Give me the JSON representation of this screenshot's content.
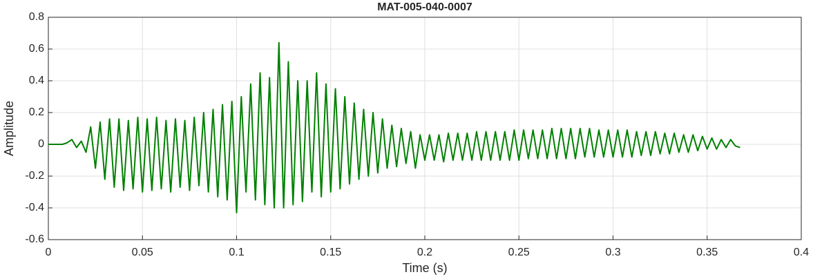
{
  "chart_data": {
    "type": "line",
    "title": "MAT-005-040-0007",
    "x_label": "Time (s)",
    "y_label": "Amplitude",
    "color": "#008000",
    "grid": true,
    "xlim": [
      0,
      0.4
    ],
    "xticks": [
      0,
      0.05,
      0.1,
      0.15,
      0.2,
      0.25,
      0.3,
      0.35,
      0.4
    ],
    "ylim": [
      -0.6,
      0.8
    ],
    "yticks": [
      -0.6,
      -0.4,
      -0.2,
      0,
      0.2,
      0.4,
      0.6,
      0.8
    ],
    "x": [
      0,
      0.0025,
      0.005,
      0.0075,
      0.01,
      0.0125,
      0.015,
      0.0175,
      0.02,
      0.0225,
      0.025,
      0.0275,
      0.03,
      0.0325,
      0.035,
      0.0375,
      0.04,
      0.0425,
      0.045,
      0.0475,
      0.05,
      0.0525,
      0.055,
      0.0575,
      0.06,
      0.0625,
      0.065,
      0.0675,
      0.07,
      0.0725,
      0.075,
      0.0775,
      0.08,
      0.0825,
      0.085,
      0.0875,
      0.09,
      0.0925,
      0.095,
      0.0975,
      0.1,
      0.1025,
      0.105,
      0.1075,
      0.11,
      0.1125,
      0.115,
      0.1175,
      0.12,
      0.1225,
      0.125,
      0.1275,
      0.13,
      0.1325,
      0.135,
      0.1375,
      0.14,
      0.1425,
      0.145,
      0.1475,
      0.15,
      0.1525,
      0.155,
      0.1575,
      0.16,
      0.1625,
      0.165,
      0.1675,
      0.17,
      0.1725,
      0.175,
      0.1775,
      0.18,
      0.1825,
      0.185,
      0.1875,
      0.19,
      0.1925,
      0.195,
      0.1975,
      0.2,
      0.2025,
      0.205,
      0.2075,
      0.21,
      0.2125,
      0.215,
      0.2175,
      0.22,
      0.2225,
      0.225,
      0.2275,
      0.23,
      0.2325,
      0.235,
      0.2375,
      0.24,
      0.2425,
      0.245,
      0.2475,
      0.25,
      0.2525,
      0.255,
      0.2575,
      0.26,
      0.2625,
      0.265,
      0.2675,
      0.27,
      0.2725,
      0.275,
      0.2775,
      0.28,
      0.2825,
      0.285,
      0.2875,
      0.29,
      0.2925,
      0.295,
      0.2975,
      0.3,
      0.3025,
      0.305,
      0.3075,
      0.31,
      0.3125,
      0.315,
      0.3175,
      0.32,
      0.3225,
      0.325,
      0.3275,
      0.33,
      0.3325,
      0.335,
      0.3375,
      0.34,
      0.3425,
      0.345,
      0.3475,
      0.35,
      0.3525,
      0.355,
      0.3575,
      0.36,
      0.3625,
      0.365,
      0.3675
    ],
    "values": [
      0,
      0,
      0,
      0,
      0.01,
      0.03,
      -0.02,
      0.02,
      -0.05,
      0.11,
      -0.15,
      0.14,
      -0.22,
      0.16,
      -0.27,
      0.16,
      -0.29,
      0.15,
      -0.28,
      0.17,
      -0.3,
      0.16,
      -0.29,
      0.17,
      -0.28,
      0.15,
      -0.3,
      0.16,
      -0.27,
      0.15,
      -0.29,
      0.17,
      -0.26,
      0.2,
      -0.3,
      0.22,
      -0.33,
      0.25,
      -0.35,
      0.27,
      -0.43,
      0.3,
      -0.3,
      0.38,
      -0.35,
      0.45,
      -0.38,
      0.42,
      -0.4,
      0.64,
      -0.4,
      0.52,
      -0.38,
      0.4,
      -0.36,
      0.4,
      -0.3,
      0.45,
      -0.33,
      0.38,
      -0.3,
      0.35,
      -0.28,
      0.3,
      -0.25,
      0.26,
      -0.22,
      0.22,
      -0.2,
      0.2,
      -0.18,
      0.16,
      -0.15,
      0.12,
      -0.14,
      0.1,
      -0.12,
      0.08,
      -0.15,
      0.06,
      -0.1,
      0.06,
      -0.1,
      0.06,
      -0.11,
      0.07,
      -0.1,
      0.07,
      -0.1,
      0.07,
      -0.1,
      0.08,
      -0.1,
      0.08,
      -0.1,
      0.08,
      -0.1,
      0.08,
      -0.1,
      0.09,
      -0.1,
      0.09,
      -0.09,
      0.09,
      -0.09,
      0.09,
      -0.09,
      0.1,
      -0.09,
      0.1,
      -0.09,
      0.1,
      -0.09,
      0.1,
      -0.08,
      0.1,
      -0.08,
      0.09,
      -0.08,
      0.09,
      -0.08,
      0.09,
      -0.08,
      0.09,
      -0.08,
      0.08,
      -0.07,
      0.08,
      -0.07,
      0.08,
      -0.06,
      0.07,
      -0.06,
      0.07,
      -0.05,
      0.06,
      -0.05,
      0.06,
      -0.04,
      0.05,
      -0.03,
      0.04,
      -0.03,
      0.03,
      -0.02,
      0.03,
      -0.01,
      -0.02
    ]
  }
}
